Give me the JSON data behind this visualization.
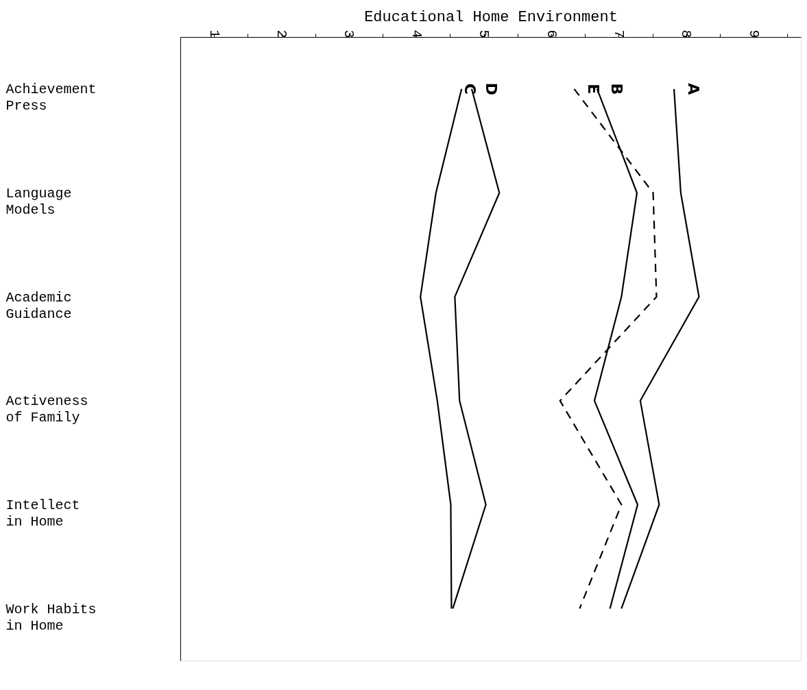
{
  "chart_data": {
    "type": "line",
    "xlabel": "Educational Home Environment",
    "categories": [
      "Achievement\nPress",
      "Language\nModels",
      "Academic\nGuidance",
      "Activeness\nof Family",
      "Intellect\nin Home",
      "Work Habits\nin Home"
    ],
    "orientation": "horizontal",
    "xlim": [
      0.5,
      9.7
    ],
    "xticks": [
      1,
      {
        "value": 1.5,
        "label": null
      },
      2,
      {
        "value": 2.5,
        "label": null
      },
      3,
      {
        "value": 3.5,
        "label": null
      },
      4,
      {
        "value": 4.5,
        "label": null
      },
      5,
      {
        "value": 5.5,
        "label": null
      },
      6,
      {
        "value": 6.5,
        "label": null
      },
      7,
      {
        "value": 7.5,
        "label": null
      },
      8,
      {
        "value": 8.5,
        "label": null
      },
      9,
      {
        "value": 9.5,
        "label": null
      }
    ],
    "grid": false,
    "marker": "none",
    "series": [
      {
        "name": "A",
        "color": "#000000",
        "line_style": "solid",
        "values": [
          7.82,
          7.92,
          8.19,
          7.32,
          7.6,
          7.04
        ]
      },
      {
        "name": "B",
        "color": "#000000",
        "line_style": "solid",
        "values": [
          6.68,
          7.27,
          7.04,
          6.64,
          7.28,
          6.87
        ]
      },
      {
        "name": "E",
        "color": "#000000",
        "line_style": "dashed",
        "values": [
          6.34,
          7.51,
          7.56,
          6.13,
          7.04,
          6.42
        ]
      },
      {
        "name": "D",
        "color": "#000000",
        "line_style": "solid",
        "values": [
          4.82,
          5.23,
          4.57,
          4.64,
          5.03,
          4.54
        ]
      },
      {
        "name": "C",
        "color": "#000000",
        "line_style": "solid",
        "values": [
          4.67,
          4.29,
          4.06,
          4.31,
          4.51,
          4.52
        ]
      }
    ]
  }
}
